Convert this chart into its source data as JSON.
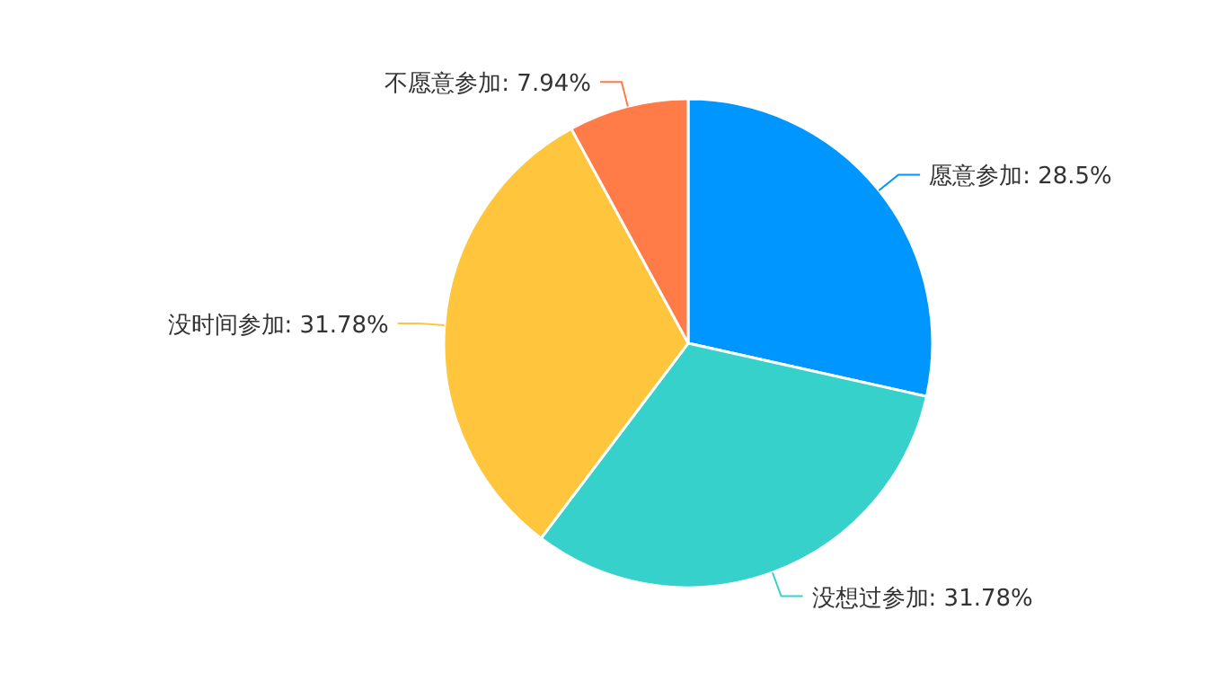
{
  "chart_data": {
    "type": "pie",
    "categories": [
      "愿意参加",
      "没想过参加",
      "没时间参加",
      "不愿意参加"
    ],
    "values": [
      28.5,
      31.78,
      31.78,
      7.94
    ],
    "value_labels": [
      "28.5%",
      "31.78%",
      "31.78%",
      "7.94%"
    ],
    "colors": [
      "#0096ff",
      "#36d1cb",
      "#ffc53d",
      "#ff7b47"
    ]
  }
}
